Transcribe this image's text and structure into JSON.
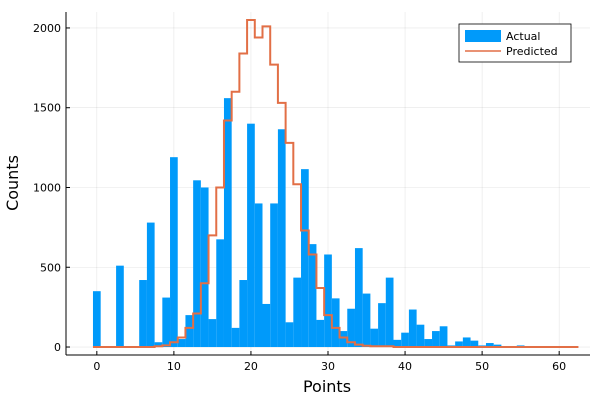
{
  "chart_data": {
    "type": "bar",
    "xlabel": "Points",
    "ylabel": "Counts",
    "xlim": [
      -4,
      64
    ],
    "ylim": [
      -50,
      2100
    ],
    "xticks": [
      0,
      10,
      20,
      30,
      40,
      50,
      60
    ],
    "yticks": [
      0,
      500,
      1000,
      1500,
      2000
    ],
    "grid": true,
    "legend_position": "top-right",
    "series": [
      {
        "name": "Actual",
        "kind": "histogram",
        "color": "#009AFA",
        "bin_width": 1,
        "bin_starts": [
          -0.5,
          0.5,
          1.5,
          2.5,
          3.5,
          4.5,
          5.5,
          6.5,
          7.5,
          8.5,
          9.5,
          10.5,
          11.5,
          12.5,
          13.5,
          14.5,
          15.5,
          16.5,
          17.5,
          18.5,
          19.5,
          20.5,
          21.5,
          22.5,
          23.5,
          24.5,
          25.5,
          26.5,
          27.5,
          28.5,
          29.5,
          30.5,
          31.5,
          32.5,
          33.5,
          34.5,
          35.5,
          36.5,
          37.5,
          38.5,
          39.5,
          40.5,
          41.5,
          42.5,
          43.5,
          44.5,
          45.5,
          46.5,
          47.5,
          48.5,
          49.5,
          50.5,
          51.5,
          52.5,
          53.5,
          54.5,
          55.5,
          56.5,
          57.5,
          58.5,
          59.5,
          60.5,
          61.5
        ],
        "values": [
          350,
          0,
          0,
          510,
          0,
          0,
          420,
          780,
          30,
          310,
          1190,
          50,
          200,
          1045,
          1000,
          175,
          675,
          1560,
          120,
          420,
          1400,
          900,
          270,
          900,
          1365,
          155,
          435,
          1115,
          645,
          170,
          580,
          305,
          100,
          240,
          620,
          335,
          115,
          275,
          435,
          45,
          90,
          235,
          140,
          50,
          100,
          130,
          10,
          35,
          60,
          40,
          10,
          25,
          15,
          0,
          0,
          10,
          5,
          0,
          0,
          0,
          0,
          0,
          0
        ]
      },
      {
        "name": "Predicted",
        "kind": "step",
        "color": "#E26F46",
        "bin_starts": [
          -0.5,
          0.5,
          1.5,
          2.5,
          3.5,
          4.5,
          5.5,
          6.5,
          7.5,
          8.5,
          9.5,
          10.5,
          11.5,
          12.5,
          13.5,
          14.5,
          15.5,
          16.5,
          17.5,
          18.5,
          19.5,
          20.5,
          21.5,
          22.5,
          23.5,
          24.5,
          25.5,
          26.5,
          27.5,
          28.5,
          29.5,
          30.5,
          31.5,
          32.5,
          33.5,
          34.5,
          35.5,
          36.5,
          37.5,
          38.5,
          39.5,
          40.5,
          41.5,
          42.5,
          43.5,
          44.5,
          45.5,
          46.5,
          47.5,
          48.5,
          49.5,
          50.5,
          51.5,
          52.5,
          53.5,
          54.5,
          55.5,
          56.5,
          57.5,
          58.5,
          59.5,
          60.5,
          61.5
        ],
        "values": [
          0,
          0,
          0,
          0,
          0,
          0,
          0,
          0,
          5,
          10,
          30,
          60,
          120,
          210,
          400,
          700,
          1000,
          1420,
          1600,
          1840,
          2050,
          1940,
          2010,
          1770,
          1530,
          1280,
          1020,
          730,
          580,
          370,
          200,
          120,
          60,
          30,
          15,
          8,
          5,
          5,
          5,
          0,
          0,
          0,
          0,
          0,
          0,
          0,
          0,
          0,
          0,
          0,
          0,
          0,
          0,
          0,
          0,
          0,
          0,
          0,
          0,
          0,
          0,
          0,
          0
        ]
      }
    ]
  }
}
